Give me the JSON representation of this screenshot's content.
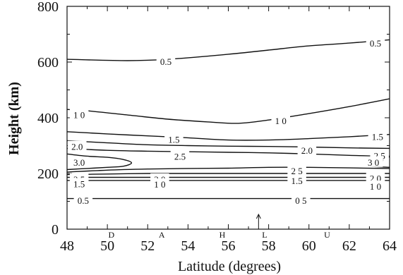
{
  "chart_data": {
    "type": "contour",
    "xlabel": "Latitude (degrees)",
    "ylabel": "Height  (km)",
    "xlim": [
      48,
      64
    ],
    "ylim": [
      0,
      800
    ],
    "xticks": [
      "48",
      "50",
      "52",
      "54",
      "56",
      "58",
      "60",
      "62",
      "64"
    ],
    "yticks": [
      "0",
      "200",
      "400",
      "600",
      "800"
    ],
    "contours": [
      {
        "level": 0.5,
        "points": [
          [
            48,
            610
          ],
          [
            51,
            605
          ],
          [
            53,
            610
          ],
          [
            56,
            628
          ],
          [
            58,
            643
          ],
          [
            60,
            658
          ],
          [
            62,
            668
          ],
          [
            64,
            680
          ]
        ]
      },
      {
        "level": 1.0,
        "points": [
          [
            48,
            430
          ],
          [
            49,
            425
          ],
          [
            51,
            410
          ],
          [
            53,
            395
          ],
          [
            55,
            385
          ],
          [
            56.5,
            380
          ],
          [
            58,
            392
          ],
          [
            60,
            415
          ],
          [
            62,
            440
          ],
          [
            64,
            468
          ]
        ]
      },
      {
        "level": 1.5,
        "points": [
          [
            48,
            350
          ],
          [
            50,
            342
          ],
          [
            52,
            335
          ],
          [
            54,
            328
          ],
          [
            56,
            320
          ],
          [
            58,
            320
          ],
          [
            60,
            325
          ],
          [
            62,
            332
          ],
          [
            64,
            340
          ]
        ]
      },
      {
        "level": 2.0,
        "points": [
          [
            48,
            318
          ],
          [
            50,
            310
          ],
          [
            52,
            303
          ],
          [
            54,
            300
          ],
          [
            56,
            298
          ],
          [
            58,
            297
          ],
          [
            60,
            295
          ],
          [
            62,
            292
          ],
          [
            64,
            290
          ]
        ]
      },
      {
        "level": 2.5,
        "points": [
          [
            48,
            290
          ],
          [
            50,
            283
          ],
          [
            52,
            280
          ],
          [
            54,
            278
          ],
          [
            56,
            276
          ],
          [
            58,
            274
          ],
          [
            60,
            270
          ],
          [
            62,
            265
          ],
          [
            64,
            262
          ]
        ]
      },
      {
        "level": 3.0,
        "points": [
          [
            48,
            270
          ],
          [
            49,
            262
          ],
          [
            50,
            258
          ],
          [
            50.8,
            250
          ],
          [
            51.2,
            238
          ],
          [
            50.8,
            226
          ],
          [
            50,
            222
          ],
          [
            49,
            218
          ],
          [
            48,
            214
          ]
        ]
      },
      {
        "level": 3.0,
        "points": [
          [
            64,
            260
          ],
          [
            63.6,
            245
          ],
          [
            62.8,
            228
          ],
          [
            64,
            222
          ]
        ]
      },
      {
        "level": 2.5,
        "points": [
          [
            48,
            205
          ],
          [
            50,
            212
          ],
          [
            52,
            216
          ],
          [
            54,
            218
          ],
          [
            56,
            219
          ],
          [
            58,
            222
          ],
          [
            60,
            222
          ],
          [
            62,
            220
          ],
          [
            64,
            218
          ]
        ]
      },
      {
        "level": 2.0,
        "points": [
          [
            48,
            196
          ],
          [
            50,
            198
          ],
          [
            52,
            200
          ],
          [
            54,
            200
          ],
          [
            56,
            200
          ],
          [
            58,
            200
          ],
          [
            60,
            200
          ],
          [
            62,
            200
          ],
          [
            64,
            200
          ]
        ]
      },
      {
        "level": 1.5,
        "points": [
          [
            48,
            186
          ],
          [
            52,
            186
          ],
          [
            56,
            186
          ],
          [
            60,
            186
          ],
          [
            64,
            186
          ]
        ]
      },
      {
        "level": 1.0,
        "points": [
          [
            48,
            175
          ],
          [
            52,
            175
          ],
          [
            56,
            175
          ],
          [
            60,
            175
          ],
          [
            64,
            175
          ]
        ]
      },
      {
        "level": 0.5,
        "points": [
          [
            48,
            110
          ],
          [
            52,
            110
          ],
          [
            56,
            110
          ],
          [
            60,
            110
          ],
          [
            64,
            110
          ]
        ]
      }
    ],
    "contour_labels": [
      {
        "text": "0.5",
        "x": 52.9,
        "y": 603
      },
      {
        "text": "0.5",
        "x": 63.3,
        "y": 668
      },
      {
        "text": "1 0",
        "x": 48.6,
        "y": 412
      },
      {
        "text": "1 0",
        "x": 58.6,
        "y": 390
      },
      {
        "text": "1.5",
        "x": 53.3,
        "y": 323
      },
      {
        "text": "1.5",
        "x": 63.4,
        "y": 333
      },
      {
        "text": "2.0",
        "x": 48.5,
        "y": 297
      },
      {
        "text": "2.0",
        "x": 59.9,
        "y": 283
      },
      {
        "text": "2.5",
        "x": 53.6,
        "y": 262
      },
      {
        "text": "2.5",
        "x": 63.5,
        "y": 264
      },
      {
        "text": "3.0",
        "x": 48.6,
        "y": 240
      },
      {
        "text": "3 0",
        "x": 63.2,
        "y": 241
      },
      {
        "text": "2 5",
        "x": 48.6,
        "y": 180
      },
      {
        "text": "2 5",
        "x": 59.4,
        "y": 210
      },
      {
        "text": "2.0",
        "x": 52.6,
        "y": 180
      },
      {
        "text": "2 0",
        "x": 63.3,
        "y": 183
      },
      {
        "text": "1.5",
        "x": 48.6,
        "y": 163
      },
      {
        "text": "1.5",
        "x": 59.4,
        "y": 175
      },
      {
        "text": "1 0",
        "x": 52.6,
        "y": 162
      },
      {
        "text": "1 0",
        "x": 63.3,
        "y": 154
      },
      {
        "text": "0.5",
        "x": 48.8,
        "y": 104
      },
      {
        "text": "0 5",
        "x": 59.6,
        "y": 104
      }
    ],
    "station_markers": [
      {
        "text": "D",
        "x": 50.2
      },
      {
        "text": "A",
        "x": 52.7
      },
      {
        "text": "H",
        "x": 55.7
      },
      {
        "text": "L",
        "x": 57.8
      },
      {
        "text": "U",
        "x": 60.9
      }
    ],
    "arrow_x": 57.5
  }
}
